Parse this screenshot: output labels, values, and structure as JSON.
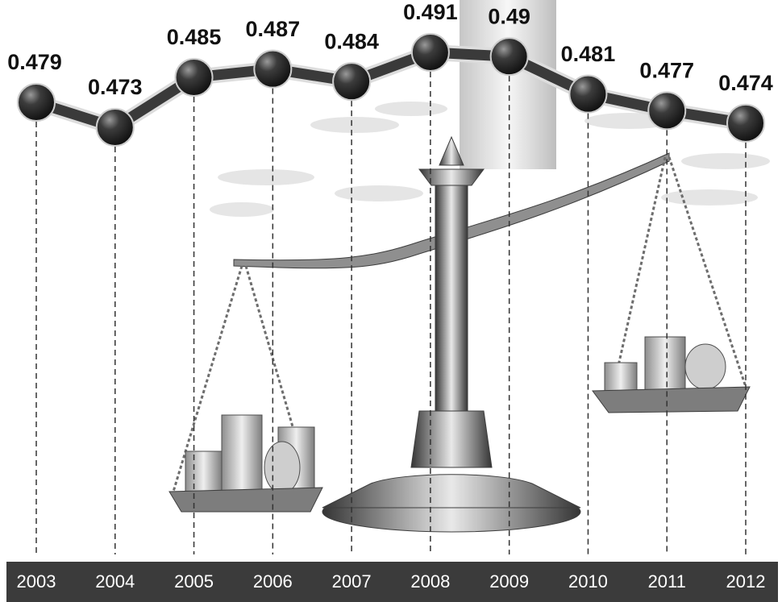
{
  "chart_data": {
    "type": "line",
    "categories": [
      "2003",
      "2004",
      "2005",
      "2006",
      "2007",
      "2008",
      "2009",
      "2010",
      "2011",
      "2012"
    ],
    "values": [
      0.479,
      0.473,
      0.485,
      0.487,
      0.484,
      0.491,
      0.49,
      0.481,
      0.477,
      0.474
    ],
    "color": "#3a3a3a"
  }
}
